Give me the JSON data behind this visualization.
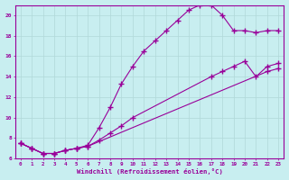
{
  "xlabel": "Windchill (Refroidissement éolien,°C)",
  "bg_color": "#c8eef0",
  "line_color": "#990099",
  "grid_color": "#b0d8d8",
  "xlim": [
    -0.5,
    23.5
  ],
  "ylim": [
    6,
    21
  ],
  "yticks": [
    6,
    8,
    10,
    12,
    14,
    16,
    18,
    20
  ],
  "xticks": [
    0,
    1,
    2,
    3,
    4,
    5,
    6,
    7,
    8,
    9,
    10,
    11,
    12,
    13,
    14,
    15,
    16,
    17,
    18,
    19,
    20,
    21,
    22,
    23
  ],
  "line1_x": [
    0,
    1,
    2,
    3,
    4,
    5,
    6,
    22,
    23
  ],
  "line1_y": [
    7.5,
    7.0,
    6.5,
    6.5,
    6.8,
    7.0,
    7.2,
    14.5,
    14.8
  ],
  "line2_x": [
    0,
    1,
    2,
    3,
    4,
    5,
    6,
    7,
    8,
    9,
    10,
    17,
    18,
    19,
    20,
    21,
    22,
    23
  ],
  "line2_y": [
    7.5,
    7.0,
    6.5,
    6.5,
    6.8,
    7.0,
    7.2,
    7.8,
    8.5,
    9.2,
    10.0,
    14.0,
    14.5,
    15.0,
    15.5,
    14.0,
    15.0,
    15.3
  ],
  "line3_x": [
    0,
    1,
    2,
    3,
    4,
    5,
    6,
    7,
    8,
    9,
    10,
    11,
    12,
    13,
    14,
    15,
    16,
    17,
    18,
    19,
    20,
    21,
    22,
    23
  ],
  "line3_y": [
    7.5,
    7.0,
    6.5,
    6.5,
    6.8,
    7.0,
    7.3,
    9.0,
    11.0,
    13.3,
    15.0,
    16.5,
    17.5,
    18.5,
    19.5,
    20.5,
    21.0,
    21.0,
    20.0,
    18.5,
    18.5,
    18.3,
    18.5,
    18.5
  ]
}
